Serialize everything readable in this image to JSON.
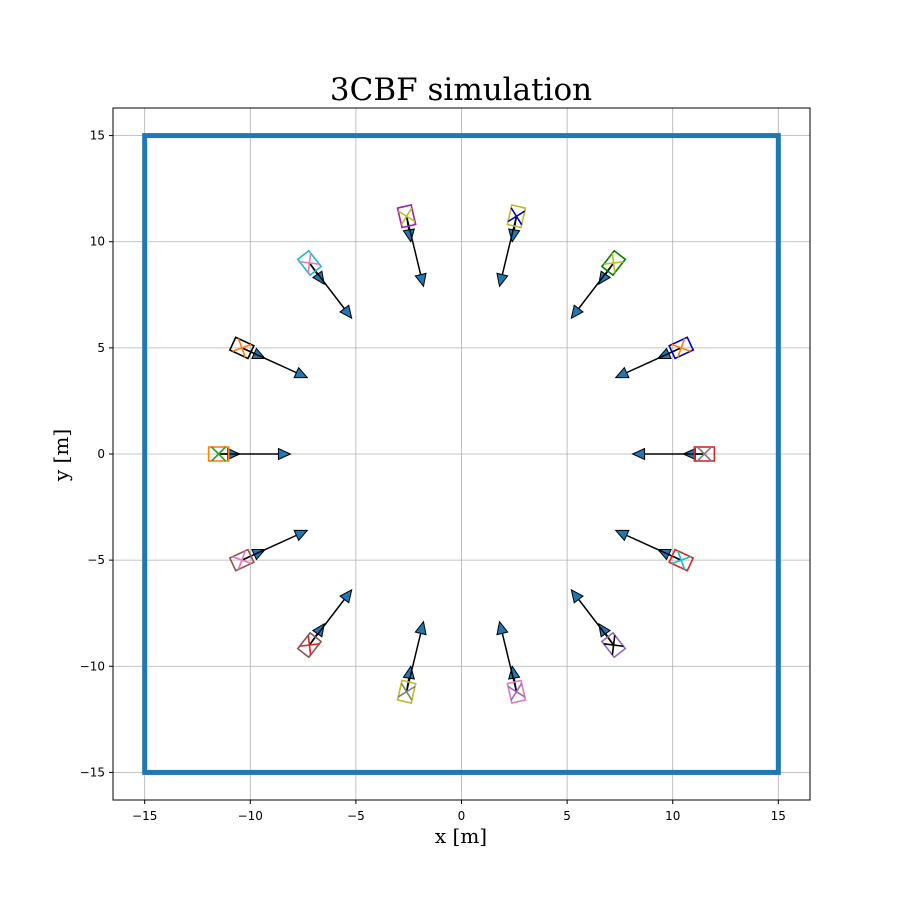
{
  "chart_data": {
    "type": "scatter",
    "title": "3CBF simulation",
    "xlabel": "x [m]",
    "ylabel": "y [m]",
    "xlim": [
      -16.5,
      16.5
    ],
    "ylim": [
      -16.3,
      16.3
    ],
    "xticks": [
      -15,
      -10,
      -5,
      0,
      5,
      10,
      15
    ],
    "yticks": [
      -15,
      -10,
      -5,
      0,
      5,
      10,
      15
    ],
    "x_tick_labels": [
      "−15",
      "−10",
      "−5",
      "0",
      "5",
      "10",
      "15"
    ],
    "y_tick_labels": [
      "−15",
      "−10",
      "−5",
      "0",
      "5",
      "10",
      "15"
    ],
    "grid": true,
    "arena": {
      "xmin": -15,
      "xmax": 15,
      "ymin": -15,
      "ymax": 15,
      "color": "#1f77b4"
    },
    "arrow_color": "#1f77b4",
    "agents": [
      {
        "x": 11.5,
        "y": 0.0,
        "angle": 180,
        "box_color": "#d62728",
        "x_color": "#7f7f7f",
        "ux": -1.0,
        "uy": 0.0,
        "vx": -3.4,
        "vy": 0.0
      },
      {
        "x": 10.4,
        "y": -5.0,
        "angle": 155,
        "box_color": "#d62728",
        "x_color": "#17becf",
        "ux": -1.1,
        "uy": 0.5,
        "vx": -3.1,
        "vy": 1.4
      },
      {
        "x": 7.2,
        "y": -9.0,
        "angle": 128,
        "box_color": "#9467bd",
        "x_color": "#000000",
        "ux": -0.7,
        "uy": 1.0,
        "vx": -2.0,
        "vy": 2.6
      },
      {
        "x": 2.6,
        "y": -11.2,
        "angle": 103,
        "box_color": "#e377c2",
        "x_color": "#9467bd",
        "ux": -0.2,
        "uy": 1.2,
        "vx": -0.8,
        "vy": 3.3
      },
      {
        "x": -2.6,
        "y": -11.2,
        "angle": 77,
        "box_color": "#bcbd22",
        "x_color": "#7f7f7f",
        "ux": 0.2,
        "uy": 1.2,
        "vx": 0.8,
        "vy": 3.3
      },
      {
        "x": -7.2,
        "y": -9.0,
        "angle": 52,
        "box_color": "#8c564b",
        "x_color": "#d62728",
        "ux": 0.7,
        "uy": 1.0,
        "vx": 2.0,
        "vy": 2.6
      },
      {
        "x": -10.4,
        "y": -5.0,
        "angle": 25,
        "box_color": "#8c564b",
        "x_color": "#e377c2",
        "ux": 1.1,
        "uy": 0.5,
        "vx": 3.1,
        "vy": 1.4
      },
      {
        "x": -11.5,
        "y": 0.0,
        "angle": 0,
        "box_color": "#ff7f0e",
        "x_color": "#2ca02c",
        "ux": 1.0,
        "uy": 0.0,
        "vx": 3.4,
        "vy": 0.0
      },
      {
        "x": -10.4,
        "y": 5.0,
        "angle": -25,
        "box_color": "#000000",
        "x_color": "#ff7f0e",
        "ux": 1.1,
        "uy": -0.5,
        "vx": 3.1,
        "vy": -1.4
      },
      {
        "x": -7.2,
        "y": 9.0,
        "angle": -52,
        "box_color": "#17becf",
        "x_color": "#e377c2",
        "ux": 0.7,
        "uy": -1.0,
        "vx": 2.0,
        "vy": -2.6
      },
      {
        "x": -2.6,
        "y": 11.2,
        "angle": -77,
        "box_color": "#9b1fb3",
        "x_color": "#bcbd22",
        "ux": 0.2,
        "uy": -1.2,
        "vx": 0.8,
        "vy": -3.3
      },
      {
        "x": 2.6,
        "y": 11.2,
        "angle": -103,
        "box_color": "#bcbd22",
        "x_color": "#0000cc",
        "ux": -0.2,
        "uy": -1.2,
        "vx": -0.8,
        "vy": -3.3
      },
      {
        "x": 7.2,
        "y": 9.0,
        "angle": -128,
        "box_color": "#008000",
        "x_color": "#bcbd22",
        "ux": -0.7,
        "uy": -1.0,
        "vx": -2.0,
        "vy": -2.6
      },
      {
        "x": 10.4,
        "y": 5.0,
        "angle": -155,
        "box_color": "#0000cc",
        "x_color": "#ff7f0e",
        "ux": -1.1,
        "uy": -0.5,
        "vx": -3.1,
        "vy": -1.4
      }
    ]
  }
}
